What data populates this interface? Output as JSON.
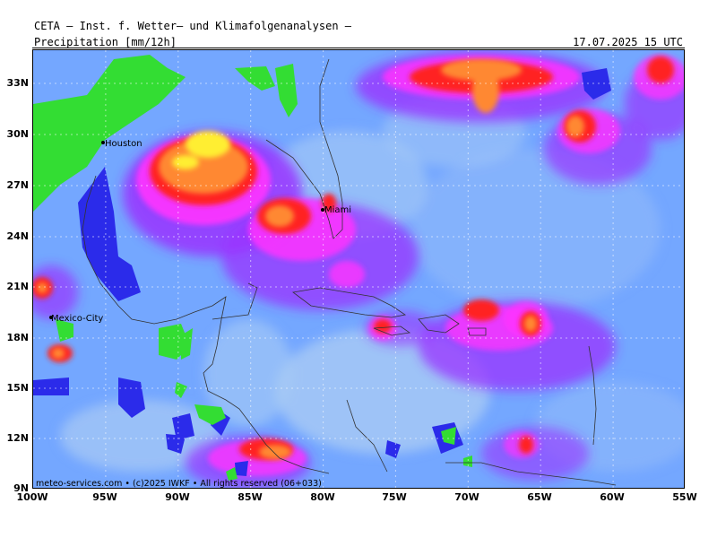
{
  "header": {
    "org": "CETA – Inst. f. Wetter– und Klimafolgenanalysen –",
    "product": "Precipitation [mm/12h]",
    "valid": "17.07.2025 15 UTC"
  },
  "map": {
    "lat_ticks": [
      "33N",
      "30N",
      "27N",
      "24N",
      "21N",
      "18N",
      "15N",
      "12N",
      "9N"
    ],
    "lon_ticks": [
      "100W",
      "95W",
      "90W",
      "85W",
      "80W",
      "75W",
      "70W",
      "65W",
      "60W",
      "55W"
    ],
    "cities": [
      "Houston",
      "Miami",
      "Mexico-City"
    ],
    "copyright": "meteo-services.com • (c)2025 IWKF • All rights reserved (06+033)",
    "colors": {
      "ocean_base": "#74a7ff",
      "light_blue": "#a9cbf5",
      "blue": "#2b2bea",
      "green": "#33dd33",
      "purple": "#9933ff",
      "magenta": "#ff33ff",
      "red": "#ff2222",
      "orange": "#ff8833",
      "yellow": "#ffee33"
    }
  }
}
